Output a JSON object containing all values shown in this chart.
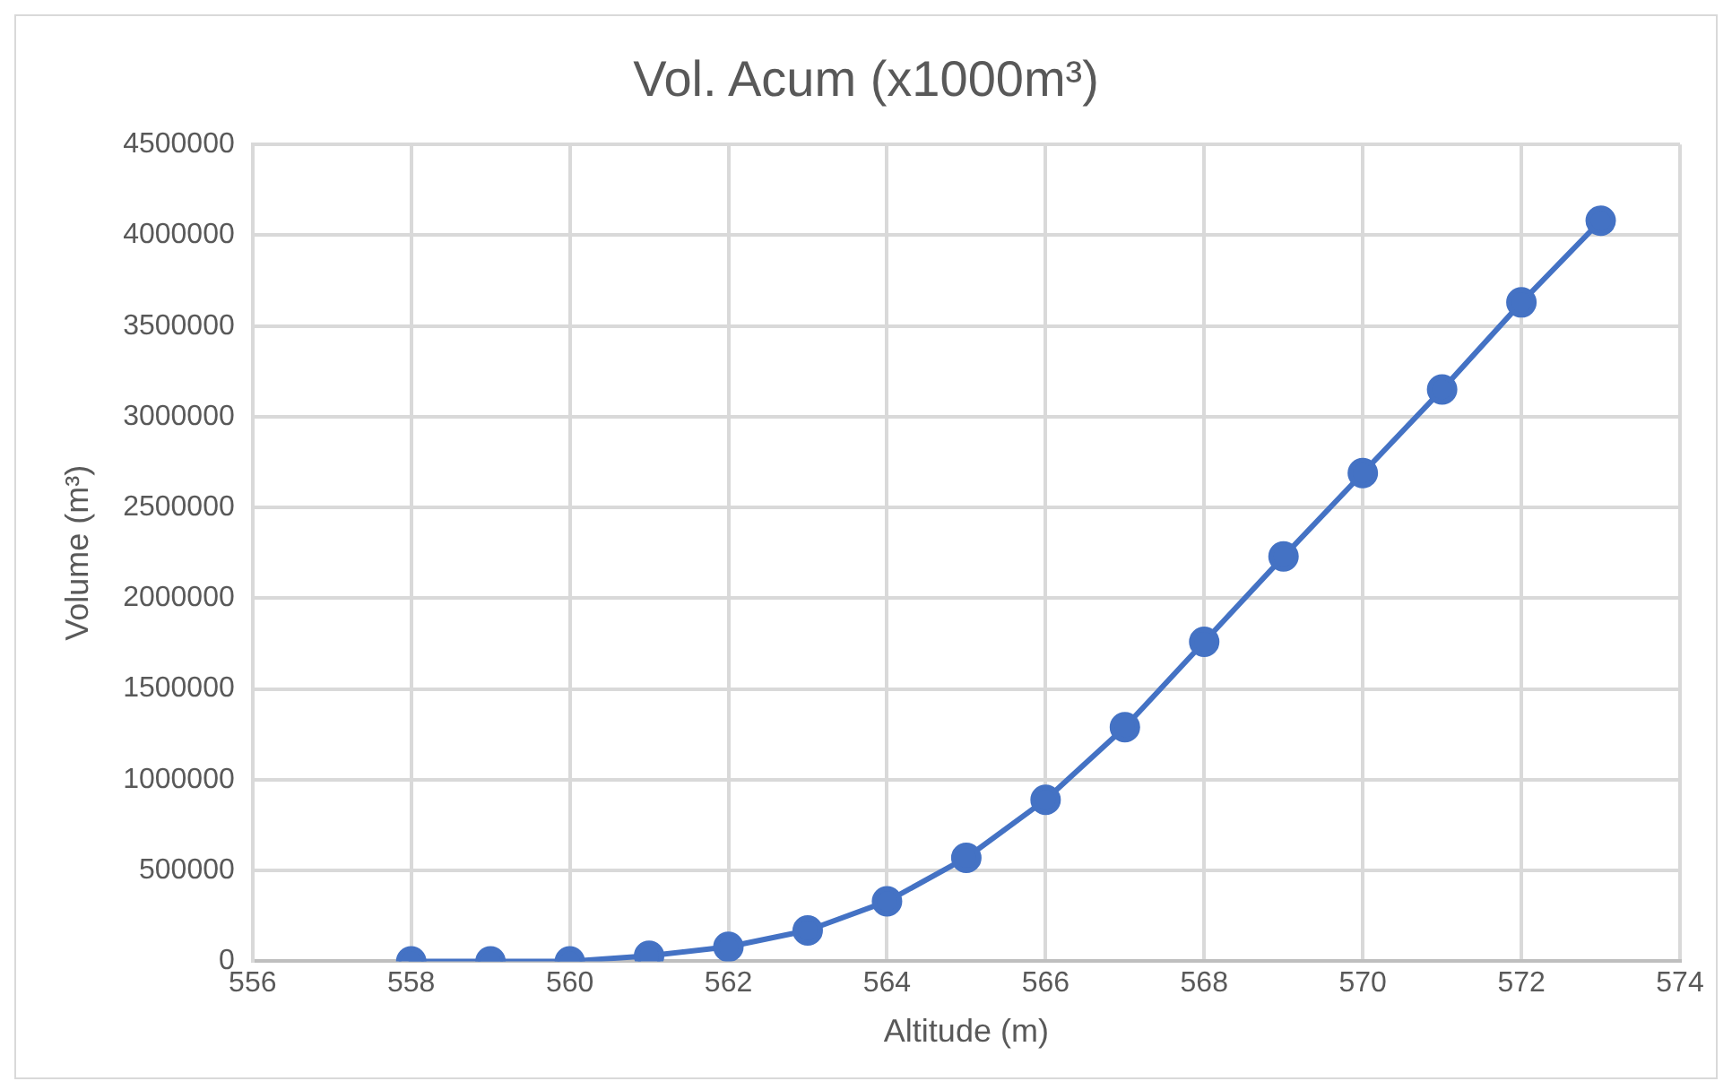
{
  "chart_data": {
    "type": "line",
    "title": "Vol. Acum (x1000m³)",
    "xlabel": "Altitude (m)",
    "ylabel": "Volume (m³)",
    "x": [
      558,
      559,
      560,
      561,
      562,
      563,
      564,
      565,
      566,
      567,
      568,
      569,
      570,
      571,
      572,
      573
    ],
    "series": [
      {
        "color": "#4472c4",
        "values": [
          0,
          0,
          0,
          30000,
          80000,
          170000,
          330000,
          570000,
          890000,
          1290000,
          1760000,
          2230000,
          2690000,
          3150000,
          3630000,
          4080000
        ]
      }
    ],
    "xlim": [
      556,
      574
    ],
    "xticks": [
      556,
      558,
      560,
      562,
      564,
      566,
      568,
      570,
      572,
      574
    ],
    "ylim": [
      0,
      4500000
    ],
    "yticks": [
      0,
      500000,
      1000000,
      1500000,
      2000000,
      2500000,
      3000000,
      3500000,
      4000000,
      4500000
    ],
    "grid": true,
    "legend": false,
    "marker": "circle",
    "line_style": "solid"
  }
}
